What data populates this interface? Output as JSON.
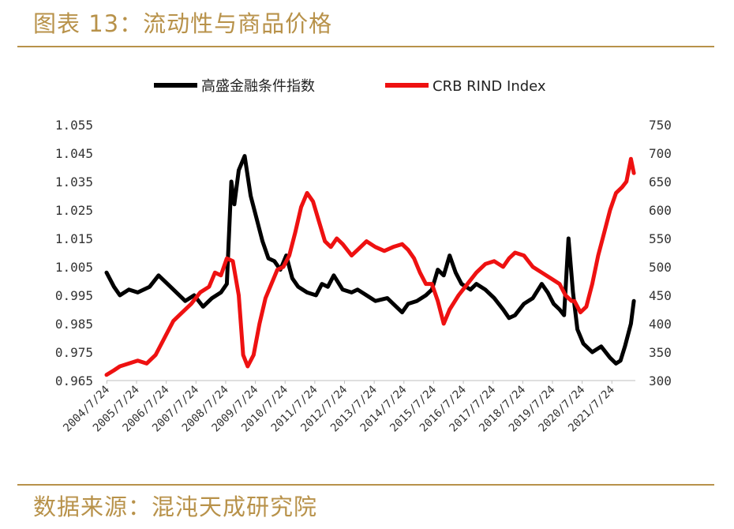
{
  "title": "图表 13：流动性与商品价格",
  "source": "数据来源：混沌天成研究院",
  "colors": {
    "accent": "#b8924a",
    "series_black": "#000000",
    "series_red": "#ee1111"
  },
  "chart_data": {
    "type": "line",
    "title": "",
    "legend": {
      "placement": "top",
      "entries": [
        "高盛金融条件指数",
        "CRB RIND Index"
      ]
    },
    "x_ticks": [
      "2004/7/24",
      "2005/7/24",
      "2006/7/24",
      "2007/7/24",
      "2008/7/24",
      "2009/7/24",
      "2010/7/24",
      "2011/7/24",
      "2012/7/24",
      "2013/7/24",
      "2014/7/24",
      "2015/7/24",
      "2016/7/24",
      "2017/7/24",
      "2018/7/24",
      "2019/7/24",
      "2020/7/24",
      "2021/7/24"
    ],
    "y_left": {
      "ticks": [
        "1.055",
        "1.045",
        "1.035",
        "1.025",
        "1.015",
        "1.005",
        "0.995",
        "0.985",
        "0.975",
        "0.965"
      ],
      "ylim": [
        0.965,
        1.055
      ]
    },
    "y_right": {
      "ticks": [
        "750",
        "700",
        "650",
        "600",
        "550",
        "500",
        "450",
        "400",
        "350",
        "300"
      ],
      "ylim": [
        300,
        750
      ]
    },
    "grid": false,
    "series": [
      {
        "name": "高盛金融条件指数",
        "axis": "left",
        "color": "#000000",
        "x": [
          2004.55,
          2004.8,
          2005.0,
          2005.3,
          2005.6,
          2006.0,
          2006.3,
          2006.6,
          2006.9,
          2007.2,
          2007.5,
          2007.8,
          2008.1,
          2008.4,
          2008.6,
          2008.75,
          2008.85,
          2009.0,
          2009.2,
          2009.4,
          2009.6,
          2009.8,
          2010.0,
          2010.2,
          2010.4,
          2010.6,
          2010.8,
          2011.0,
          2011.3,
          2011.6,
          2011.8,
          2012.0,
          2012.2,
          2012.5,
          2012.8,
          2013.0,
          2013.3,
          2013.6,
          2014.0,
          2014.3,
          2014.5,
          2014.7,
          2015.0,
          2015.3,
          2015.5,
          2015.7,
          2015.9,
          2016.1,
          2016.3,
          2016.5,
          2016.8,
          2017.0,
          2017.3,
          2017.6,
          2017.9,
          2018.1,
          2018.3,
          2018.6,
          2018.9,
          2019.2,
          2019.4,
          2019.6,
          2019.8,
          2019.95,
          2020.1,
          2020.25,
          2020.4,
          2020.6,
          2020.9,
          2021.2,
          2021.5,
          2021.7,
          2021.85,
          2022.0,
          2022.2,
          2022.3
        ],
        "values": [
          1.003,
          0.998,
          0.995,
          0.997,
          0.996,
          0.998,
          1.002,
          0.999,
          0.996,
          0.993,
          0.995,
          0.991,
          0.994,
          0.996,
          0.999,
          1.035,
          1.027,
          1.039,
          1.044,
          1.03,
          1.022,
          1.014,
          1.008,
          1.007,
          1.004,
          1.009,
          1.001,
          0.998,
          0.996,
          0.995,
          0.999,
          0.998,
          1.002,
          0.997,
          0.996,
          0.997,
          0.995,
          0.993,
          0.994,
          0.991,
          0.989,
          0.992,
          0.993,
          0.995,
          0.997,
          1.004,
          1.002,
          1.009,
          1.003,
          0.999,
          0.997,
          0.999,
          0.997,
          0.994,
          0.99,
          0.987,
          0.988,
          0.992,
          0.994,
          0.999,
          0.996,
          0.992,
          0.99,
          0.988,
          1.015,
          0.996,
          0.983,
          0.978,
          0.975,
          0.977,
          0.973,
          0.971,
          0.972,
          0.977,
          0.985,
          0.993
        ]
      },
      {
        "name": "CRB RIND Index",
        "axis": "right",
        "color": "#ee1111",
        "x": [
          2004.55,
          2004.8,
          2005.0,
          2005.3,
          2005.6,
          2005.9,
          2006.2,
          2006.5,
          2006.8,
          2007.1,
          2007.4,
          2007.7,
          2008.0,
          2008.2,
          2008.4,
          2008.6,
          2008.8,
          2009.0,
          2009.15,
          2009.3,
          2009.5,
          2009.7,
          2009.9,
          2010.1,
          2010.3,
          2010.5,
          2010.7,
          2010.9,
          2011.1,
          2011.3,
          2011.5,
          2011.7,
          2011.9,
          2012.1,
          2012.3,
          2012.5,
          2012.8,
          2013.0,
          2013.3,
          2013.6,
          2013.9,
          2014.2,
          2014.5,
          2014.7,
          2014.9,
          2015.1,
          2015.3,
          2015.5,
          2015.7,
          2015.9,
          2016.1,
          2016.4,
          2016.7,
          2017.0,
          2017.3,
          2017.6,
          2017.9,
          2018.1,
          2018.3,
          2018.6,
          2018.9,
          2019.2,
          2019.5,
          2019.8,
          2020.0,
          2020.2,
          2020.3,
          2020.5,
          2020.7,
          2020.9,
          2021.1,
          2021.3,
          2021.5,
          2021.7,
          2021.9,
          2022.05,
          2022.2,
          2022.3
        ],
        "values": [
          310,
          318,
          325,
          330,
          335,
          330,
          345,
          375,
          405,
          420,
          435,
          455,
          465,
          490,
          485,
          515,
          510,
          450,
          345,
          325,
          345,
          400,
          445,
          470,
          495,
          500,
          520,
          560,
          605,
          630,
          615,
          580,
          545,
          535,
          550,
          540,
          520,
          530,
          545,
          535,
          528,
          535,
          540,
          530,
          515,
          490,
          470,
          470,
          440,
          400,
          425,
          450,
          470,
          490,
          505,
          510,
          500,
          515,
          525,
          520,
          500,
          490,
          480,
          470,
          450,
          440,
          440,
          420,
          430,
          470,
          520,
          560,
          600,
          630,
          640,
          650,
          690,
          665
        ]
      }
    ]
  }
}
